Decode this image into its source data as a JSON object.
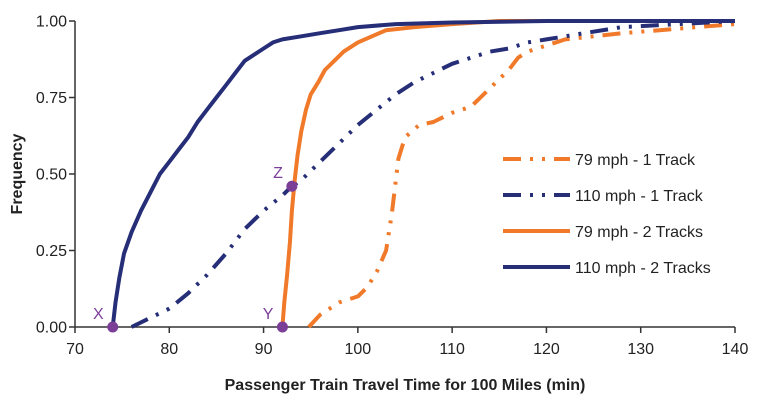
{
  "chart_data": {
    "type": "line",
    "title": "",
    "xlabel": "Passenger Train Travel Time for 100 Miles (min)",
    "ylabel": "Frequency",
    "xlim": [
      70,
      140
    ],
    "ylim": [
      0,
      1
    ],
    "x_ticks": [
      "70",
      "80",
      "90",
      "100",
      "110",
      "120",
      "130",
      "140"
    ],
    "y_ticks": [
      "0.00",
      "0.25",
      "0.50",
      "0.75",
      "1.00"
    ],
    "grid": false,
    "legend_position": "right",
    "series": [
      {
        "name": "79 mph - 1 Track",
        "color": "#f07a2a",
        "dash": "dash-dot-dot",
        "x": [
          94.8,
          96,
          98,
          100,
          101,
          102,
          103,
          103.6,
          104.3,
          105,
          106.5,
          108,
          110,
          112,
          114,
          115,
          116,
          117,
          118,
          120,
          122,
          125,
          128,
          132,
          136,
          140
        ],
        "y": [
          0.0,
          0.04,
          0.08,
          0.1,
          0.13,
          0.18,
          0.25,
          0.37,
          0.55,
          0.62,
          0.66,
          0.67,
          0.7,
          0.72,
          0.78,
          0.81,
          0.84,
          0.88,
          0.9,
          0.92,
          0.94,
          0.95,
          0.96,
          0.97,
          0.98,
          0.99
        ]
      },
      {
        "name": "110 mph - 1 Track",
        "color": "#262e78",
        "dash": "dash-dot-dot",
        "x": [
          76,
          78,
          80,
          82,
          84,
          86,
          88,
          90,
          92,
          93,
          94,
          96,
          98,
          100,
          102,
          104,
          106,
          108,
          110,
          112,
          114,
          116,
          118,
          120,
          124,
          128,
          134,
          140
        ],
        "y": [
          0.0,
          0.03,
          0.06,
          0.11,
          0.17,
          0.24,
          0.32,
          0.38,
          0.43,
          0.46,
          0.48,
          0.54,
          0.6,
          0.66,
          0.71,
          0.76,
          0.8,
          0.83,
          0.86,
          0.88,
          0.9,
          0.91,
          0.93,
          0.94,
          0.96,
          0.98,
          0.99,
          1.0
        ]
      },
      {
        "name": "79 mph - 2 Tracks",
        "color": "#f07a2a",
        "dash": "solid",
        "x": [
          92,
          92.2,
          92.5,
          92.8,
          93.0,
          93.3,
          93.6,
          94,
          94.5,
          95,
          95.8,
          96.5,
          97.5,
          98.5,
          100,
          101.5,
          103,
          106,
          110,
          115,
          120
        ],
        "y": [
          0.0,
          0.08,
          0.17,
          0.28,
          0.38,
          0.48,
          0.56,
          0.64,
          0.71,
          0.76,
          0.8,
          0.84,
          0.87,
          0.9,
          0.93,
          0.95,
          0.97,
          0.98,
          0.99,
          1.0,
          1.0
        ]
      },
      {
        "name": "110 mph - 2 Tracks",
        "color": "#262e78",
        "dash": "solid",
        "x": [
          74,
          74.3,
          74.7,
          75.2,
          76,
          77,
          78,
          79,
          80,
          81,
          82,
          83,
          84,
          85,
          86,
          87,
          88,
          89,
          90,
          91,
          92,
          94,
          96,
          98,
          100,
          104,
          110,
          120,
          140
        ],
        "y": [
          0.0,
          0.08,
          0.16,
          0.24,
          0.31,
          0.38,
          0.44,
          0.5,
          0.54,
          0.58,
          0.62,
          0.67,
          0.71,
          0.75,
          0.79,
          0.83,
          0.87,
          0.89,
          0.91,
          0.93,
          0.94,
          0.95,
          0.96,
          0.97,
          0.98,
          0.99,
          0.995,
          1.0,
          1.0
        ]
      }
    ],
    "annotations": [
      {
        "label": "X",
        "x": 74,
        "y": 0.0
      },
      {
        "label": "Y",
        "x": 92,
        "y": 0.0
      },
      {
        "label": "Z",
        "x": 93,
        "y": 0.46
      }
    ],
    "annotation_color": "#7b3f98"
  }
}
